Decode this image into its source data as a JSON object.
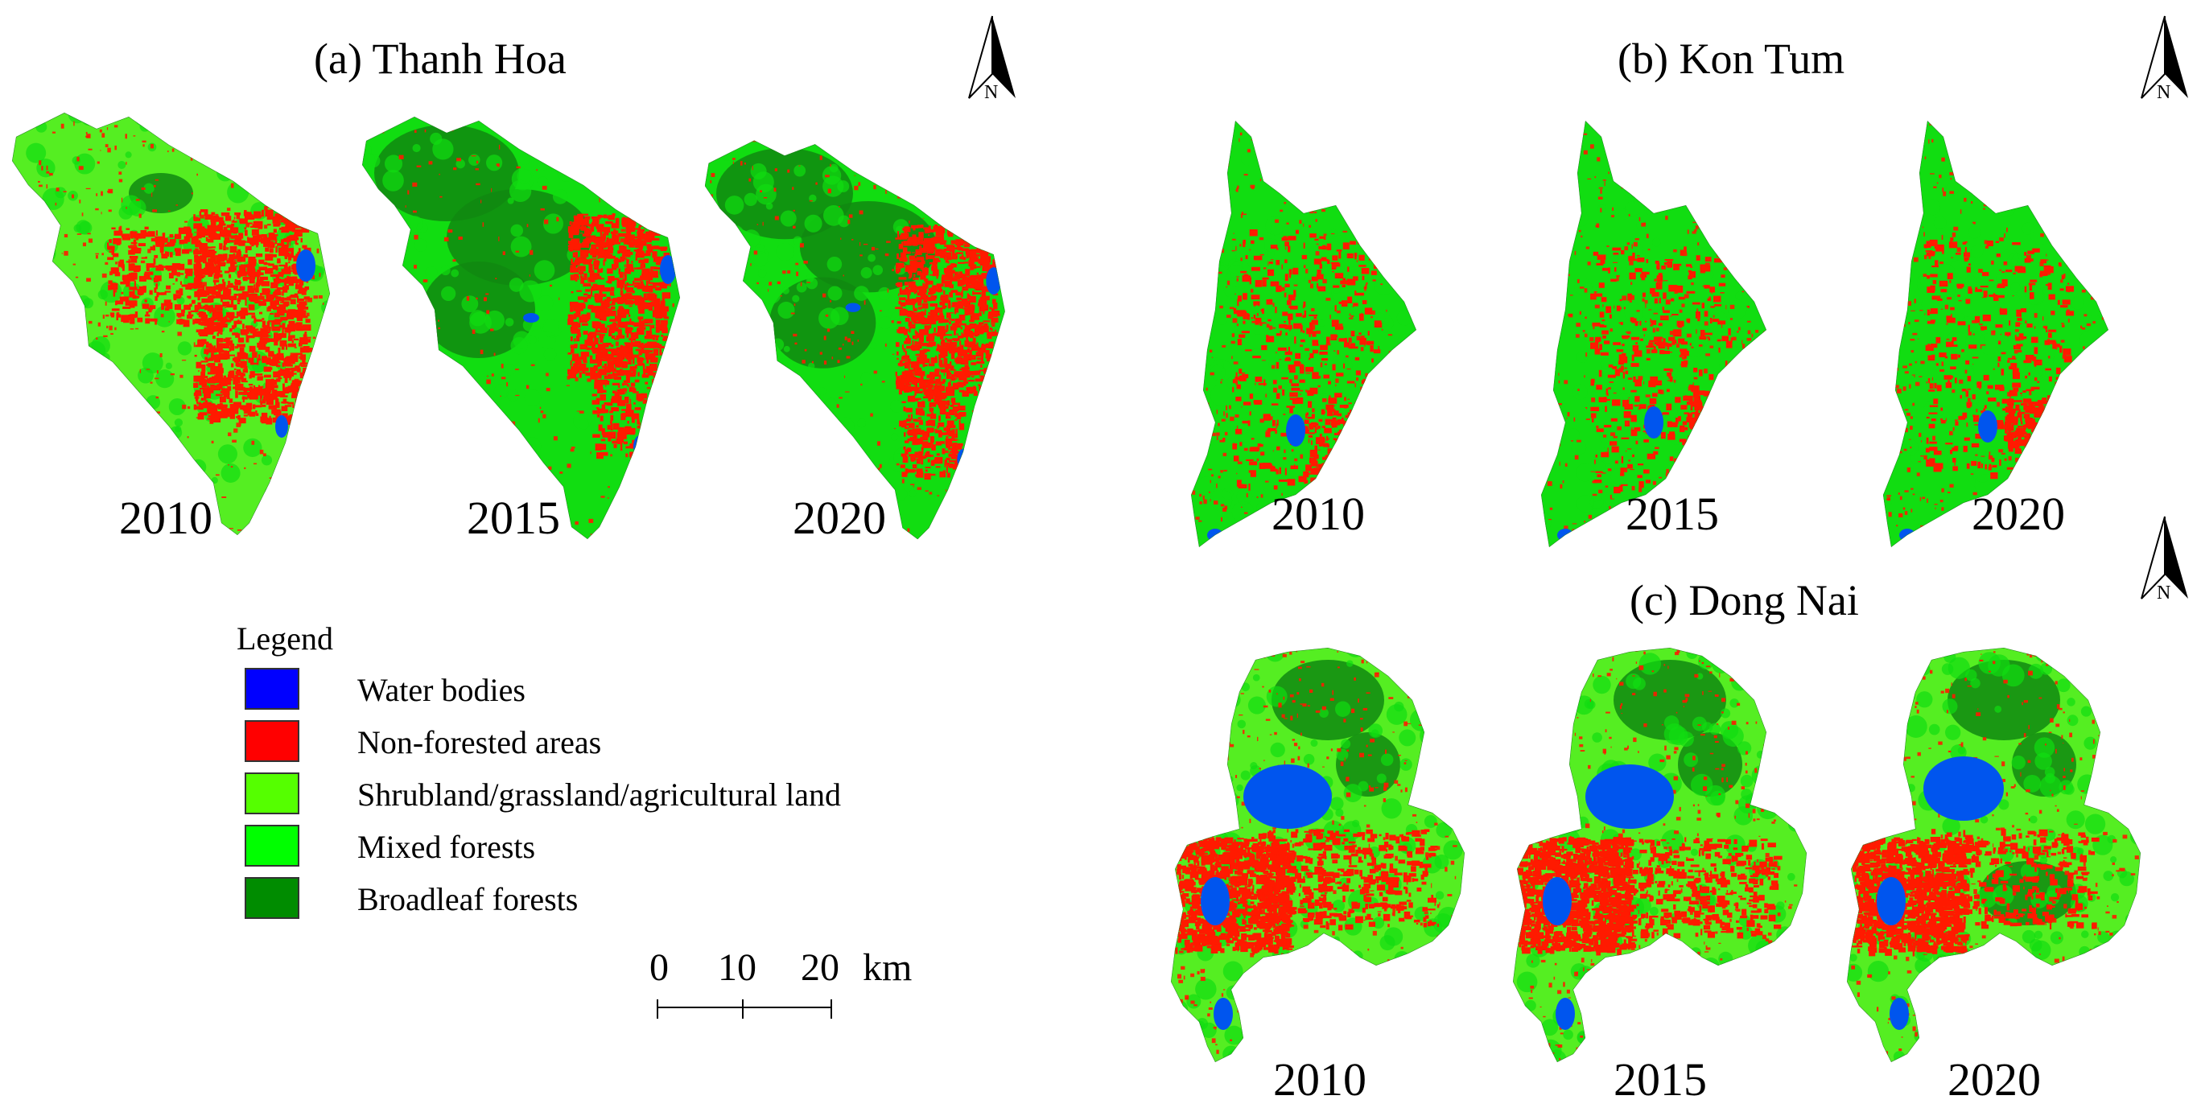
{
  "panels": [
    {
      "id": "thanh-hoa",
      "title": "(a) Thanh Hoa",
      "years": [
        "2010",
        "2015",
        "2020"
      ]
    },
    {
      "id": "kon-tum",
      "title": "(b) Kon Tum",
      "years": [
        "2010",
        "2015",
        "2020"
      ]
    },
    {
      "id": "dong-nai",
      "title": "(c) Dong Nai",
      "years": [
        "2010",
        "2015",
        "2020"
      ]
    }
  ],
  "north_arrow": {
    "label": "N"
  },
  "legend": {
    "title": "Legend",
    "items": [
      {
        "label": "Water bodies",
        "color": "#0000ff"
      },
      {
        "label": "Non-forested areas",
        "color": "#ff0000"
      },
      {
        "label": "Shrubland/grassland/agricultural land",
        "color": "#55ff00"
      },
      {
        "label": "Mixed forests",
        "color": "#00ff00"
      },
      {
        "label": "Broadleaf forests",
        "color": "#008c00"
      }
    ]
  },
  "scale_bar": {
    "ticks": [
      "0",
      "10",
      "20"
    ],
    "unit": "km"
  },
  "colors": {
    "water": "#0055ee",
    "non_forest": "#ff1a00",
    "shrub": "#55ee22",
    "mixed": "#11dd11",
    "broadleaf": "#118811"
  }
}
